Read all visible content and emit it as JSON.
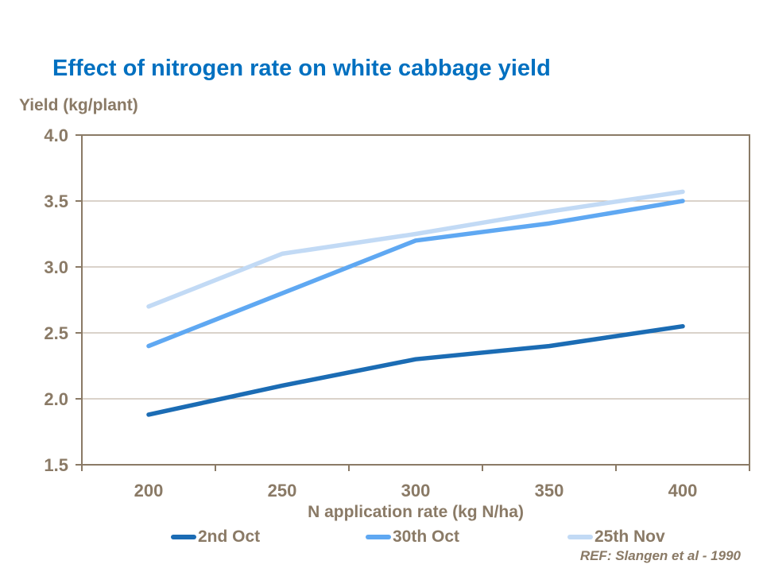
{
  "title": "Effect of nitrogen rate on white cabbage yield",
  "ref_text": "REF: Slangen et al - 1990",
  "colors": {
    "title": "#0070C0",
    "axis_text": "#8A7A66",
    "axis_line": "#8A7A66",
    "gridline": "#C3B8AA",
    "background": "#FFFFFF"
  },
  "chart_data": {
    "type": "line",
    "title": "Effect of nitrogen rate on white cabbage yield",
    "xlabel": "N application rate (kg N/ha)",
    "ylabel": "Yield (kg/plant)",
    "x": [
      200,
      250,
      300,
      350,
      400
    ],
    "xtick_labels": [
      "200",
      "250",
      "300",
      "350",
      "400"
    ],
    "yticks": [
      1.5,
      2.0,
      2.5,
      3.0,
      3.5,
      4.0
    ],
    "ytick_labels": [
      "1.5",
      "2.0",
      "2.5",
      "3.0",
      "3.5",
      "4.0"
    ],
    "ylim": [
      1.5,
      4.0
    ],
    "grid": true,
    "legend_position": "bottom",
    "series": [
      {
        "name": "2nd Oct",
        "color": "#1B6CB4",
        "values": [
          1.88,
          2.1,
          2.3,
          2.4,
          2.55
        ]
      },
      {
        "name": "30th Oct",
        "color": "#5FA8F2",
        "values": [
          2.4,
          2.8,
          3.2,
          3.33,
          3.5
        ]
      },
      {
        "name": "25th Nov",
        "color": "#C2DAF5",
        "values": [
          2.7,
          3.1,
          3.25,
          3.42,
          3.57
        ]
      }
    ]
  }
}
